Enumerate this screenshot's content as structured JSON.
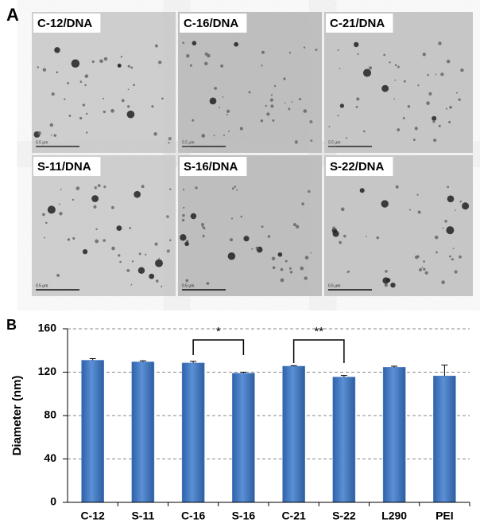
{
  "panel_labels": [
    "A",
    "B"
  ],
  "images": [
    {
      "label": "C-12/DNA",
      "scale": "0.5 μm"
    },
    {
      "label": "C-16/DNA",
      "scale": "0.5 μm"
    },
    {
      "label": "C-21/DNA",
      "scale": "0.5 μm"
    },
    {
      "label": "S-11/DNA",
      "scale": "0.5 μm"
    },
    {
      "label": "S-16/DNA",
      "scale": "0.5 μm"
    },
    {
      "label": "S-22/DNA",
      "scale": "0.5 μm"
    }
  ],
  "chart_data": {
    "type": "bar",
    "y_label": "Diameter (nm)",
    "categories": [
      "C-12",
      "S-11",
      "C-16",
      "S-16",
      "C-21",
      "S-22",
      "L290",
      "PEI"
    ],
    "values": [
      131,
      129.5,
      128.5,
      119,
      125.5,
      115.5,
      124.5,
      116.5
    ],
    "errors": [
      1.5,
      1,
      1.5,
      1,
      0.5,
      1.5,
      1,
      10
    ],
    "color": "#4a7fc8",
    "ylim": [
      0,
      160
    ],
    "yticks": [
      0,
      40,
      80,
      120,
      160
    ],
    "grid": true,
    "annotations": [
      "*",
      "**"
    ]
  }
}
